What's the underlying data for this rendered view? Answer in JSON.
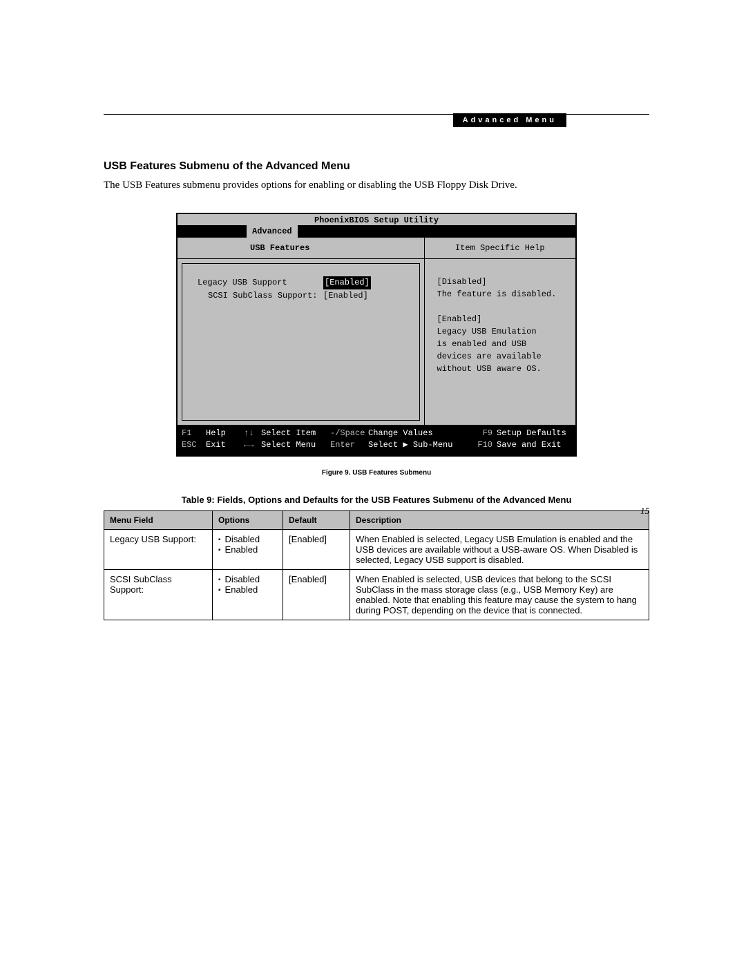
{
  "header": {
    "tab_label": "Advanced Menu"
  },
  "section": {
    "heading": "USB Features Submenu of the Advanced Menu",
    "intro": "The USB Features submenu provides options for enabling or disabling the USB Floppy Disk Drive."
  },
  "bios": {
    "title": "PhoenixBIOS Setup Utility",
    "active_tab": "Advanced",
    "submenu_title": "USB Features",
    "help_title": "Item Specific Help",
    "fields": [
      {
        "label": "Legacy USB Support",
        "value": "[Enabled]",
        "selected": true,
        "indent": false
      },
      {
        "label": "SCSI SubClass Support:",
        "value": "[Enabled]",
        "selected": false,
        "indent": true
      }
    ],
    "help_lines": [
      "[Disabled]",
      "The feature is disabled.",
      "",
      "[Enabled]",
      "Legacy USB Emulation",
      "is enabled and USB",
      "devices are available",
      "without USB aware OS."
    ],
    "footer": {
      "row1": {
        "k1": "F1",
        "l1": "Help",
        "k2": "↑↓",
        "l2": "Select Item",
        "k3": "-/Space",
        "l3": "Change Values",
        "k4": "F9",
        "l4": "Setup Defaults"
      },
      "row2": {
        "k1": "ESC",
        "l1": "Exit",
        "k2": "←→",
        "l2": "Select Menu",
        "k3": "Enter",
        "l3": "Select ▶ Sub-Menu",
        "k4": "F10",
        "l4": "Save and Exit"
      }
    }
  },
  "figure_caption": "Figure 9.  USB Features Submenu",
  "table_caption": "Table 9: Fields, Options and Defaults for the USB Features Submenu of the Advanced Menu",
  "table": {
    "headers": [
      "Menu Field",
      "Options",
      "Default",
      "Description"
    ],
    "rows": [
      {
        "menu": "Legacy USB Support:",
        "options": [
          "Disabled",
          "Enabled"
        ],
        "default": "[Enabled]",
        "description": "When Enabled is selected, Legacy USB Emulation is enabled and the USB devices are available without a USB-aware OS. When Disabled is selected, Legacy USB support is disabled."
      },
      {
        "menu": "SCSI SubClass Support:",
        "options": [
          "Disabled",
          "Enabled"
        ],
        "default": "[Enabled]",
        "description": "When Enabled is selected, USB devices that belong to the SCSI SubClass in the mass storage class (e.g., USB Memory Key) are enabled. Note that enabling this feature may cause the system to hang during POST, depending on the device that is connected."
      }
    ]
  },
  "page_number": "15"
}
